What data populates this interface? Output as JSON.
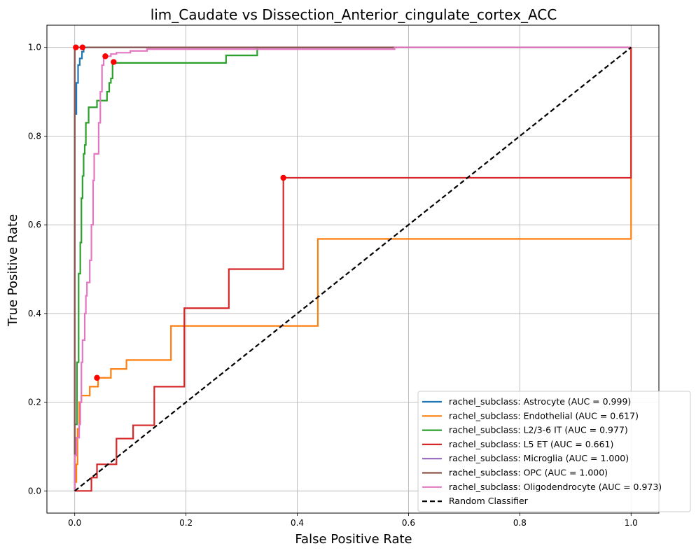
{
  "chart_data": {
    "type": "line",
    "title": "lim_Caudate vs Dissection_Anterior_cingulate_cortex_ACC",
    "xlabel": "False Positive Rate",
    "ylabel": "True Positive Rate",
    "xlim": [
      -0.05,
      1.05
    ],
    "ylim": [
      -0.05,
      1.05
    ],
    "xticks": [
      0.0,
      0.2,
      0.4,
      0.6,
      0.8,
      1.0
    ],
    "yticks": [
      0.0,
      0.2,
      0.4,
      0.6,
      0.8,
      1.0
    ],
    "xtick_labels": [
      "0.0",
      "0.2",
      "0.4",
      "0.6",
      "0.8",
      "1.0"
    ],
    "ytick_labels": [
      "0.0",
      "0.2",
      "0.4",
      "0.6",
      "0.8",
      "1.0"
    ],
    "grid": true,
    "legend_position": "lower-right",
    "series": [
      {
        "name": "rachel_subclass: Astrocyte (AUC = 0.999)",
        "color": "#1f77b4",
        "points": [
          [
            0,
            0
          ],
          [
            0,
            0.85
          ],
          [
            0.003,
            0.85
          ],
          [
            0.003,
            0.92
          ],
          [
            0.006,
            0.92
          ],
          [
            0.006,
            0.96
          ],
          [
            0.009,
            0.96
          ],
          [
            0.009,
            0.975
          ],
          [
            0.013,
            0.975
          ],
          [
            0.013,
            0.99
          ],
          [
            0.016,
            0.99
          ],
          [
            0.016,
            1.0
          ],
          [
            1.0,
            1.0
          ]
        ],
        "marker": [
          0.014,
          1.0
        ]
      },
      {
        "name": "rachel_subclass: Endothelial (AUC = 0.617)",
        "color": "#ff7f0e",
        "points": [
          [
            0,
            0
          ],
          [
            0,
            0.02
          ],
          [
            0.003,
            0.02
          ],
          [
            0.003,
            0.06
          ],
          [
            0.005,
            0.06
          ],
          [
            0.005,
            0.14
          ],
          [
            0.008,
            0.14
          ],
          [
            0.008,
            0.2
          ],
          [
            0.012,
            0.2
          ],
          [
            0.012,
            0.215
          ],
          [
            0.027,
            0.215
          ],
          [
            0.027,
            0.235
          ],
          [
            0.042,
            0.235
          ],
          [
            0.042,
            0.255
          ],
          [
            0.065,
            0.255
          ],
          [
            0.065,
            0.275
          ],
          [
            0.093,
            0.275
          ],
          [
            0.093,
            0.295
          ],
          [
            0.173,
            0.295
          ],
          [
            0.173,
            0.372
          ],
          [
            0.437,
            0.372
          ],
          [
            0.437,
            0.568
          ],
          [
            1.0,
            0.568
          ],
          [
            1.0,
            1.0
          ]
        ],
        "marker": [
          0.04,
          0.255
        ]
      },
      {
        "name": "rachel_subclass: L2/3-6 IT (AUC = 0.977)",
        "color": "#2ca02c",
        "points": [
          [
            0,
            0
          ],
          [
            0,
            0.15
          ],
          [
            0.004,
            0.15
          ],
          [
            0.004,
            0.29
          ],
          [
            0.007,
            0.29
          ],
          [
            0.007,
            0.49
          ],
          [
            0.01,
            0.49
          ],
          [
            0.01,
            0.56
          ],
          [
            0.012,
            0.56
          ],
          [
            0.012,
            0.66
          ],
          [
            0.014,
            0.66
          ],
          [
            0.014,
            0.71
          ],
          [
            0.016,
            0.71
          ],
          [
            0.016,
            0.76
          ],
          [
            0.018,
            0.76
          ],
          [
            0.018,
            0.78
          ],
          [
            0.02,
            0.78
          ],
          [
            0.02,
            0.83
          ],
          [
            0.025,
            0.83
          ],
          [
            0.025,
            0.865
          ],
          [
            0.04,
            0.865
          ],
          [
            0.04,
            0.88
          ],
          [
            0.058,
            0.88
          ],
          [
            0.058,
            0.9
          ],
          [
            0.062,
            0.9
          ],
          [
            0.062,
            0.92
          ],
          [
            0.065,
            0.92
          ],
          [
            0.065,
            0.93
          ],
          [
            0.068,
            0.93
          ],
          [
            0.068,
            0.965
          ],
          [
            0.272,
            0.965
          ],
          [
            0.272,
            0.982
          ],
          [
            0.328,
            0.982
          ],
          [
            0.328,
            1.0
          ],
          [
            1.0,
            1.0
          ]
        ],
        "marker": [
          0.07,
          0.967
        ]
      },
      {
        "name": "rachel_subclass: L5 ET (AUC = 0.661)",
        "color": "#d62728",
        "points": [
          [
            0,
            0
          ],
          [
            0.03,
            0
          ],
          [
            0.03,
            0.03
          ],
          [
            0.04,
            0.03
          ],
          [
            0.04,
            0.06
          ],
          [
            0.075,
            0.06
          ],
          [
            0.075,
            0.118
          ],
          [
            0.105,
            0.118
          ],
          [
            0.105,
            0.148
          ],
          [
            0.143,
            0.148
          ],
          [
            0.143,
            0.235
          ],
          [
            0.197,
            0.235
          ],
          [
            0.197,
            0.412
          ],
          [
            0.277,
            0.412
          ],
          [
            0.277,
            0.5
          ],
          [
            0.375,
            0.5
          ],
          [
            0.375,
            0.706
          ],
          [
            1.0,
            0.706
          ],
          [
            1.0,
            1.0
          ]
        ],
        "marker": [
          0.375,
          0.706
        ]
      },
      {
        "name": "rachel_subclass: Microglia (AUC = 1.000)",
        "color": "#9467bd",
        "points": [
          [
            0,
            0
          ],
          [
            0,
            1.0
          ],
          [
            1.0,
            1.0
          ]
        ],
        "marker": null
      },
      {
        "name": "rachel_subclass: OPC (AUC = 1.000)",
        "color": "#8c564b",
        "points": [
          [
            0,
            0
          ],
          [
            0,
            1.0
          ],
          [
            1.0,
            1.0
          ]
        ],
        "marker": [
          0.002,
          1.0
        ]
      },
      {
        "name": "rachel_subclass: Oligodendrocyte (AUC = 0.973)",
        "color": "#e377c2",
        "points": [
          [
            0,
            0
          ],
          [
            0,
            0.08
          ],
          [
            0.003,
            0.08
          ],
          [
            0.003,
            0.12
          ],
          [
            0.008,
            0.12
          ],
          [
            0.008,
            0.15
          ],
          [
            0.01,
            0.15
          ],
          [
            0.01,
            0.2
          ],
          [
            0.012,
            0.2
          ],
          [
            0.012,
            0.29
          ],
          [
            0.014,
            0.29
          ],
          [
            0.014,
            0.34
          ],
          [
            0.018,
            0.34
          ],
          [
            0.018,
            0.4
          ],
          [
            0.02,
            0.4
          ],
          [
            0.02,
            0.44
          ],
          [
            0.022,
            0.44
          ],
          [
            0.022,
            0.47
          ],
          [
            0.027,
            0.47
          ],
          [
            0.027,
            0.52
          ],
          [
            0.03,
            0.52
          ],
          [
            0.03,
            0.6
          ],
          [
            0.033,
            0.6
          ],
          [
            0.033,
            0.7
          ],
          [
            0.035,
            0.7
          ],
          [
            0.035,
            0.76
          ],
          [
            0.043,
            0.76
          ],
          [
            0.043,
            0.83
          ],
          [
            0.046,
            0.83
          ],
          [
            0.046,
            0.9
          ],
          [
            0.049,
            0.9
          ],
          [
            0.049,
            0.96
          ],
          [
            0.052,
            0.96
          ],
          [
            0.052,
            0.98
          ],
          [
            0.065,
            0.98
          ],
          [
            0.065,
            0.985
          ],
          [
            0.075,
            0.985
          ],
          [
            0.075,
            0.988
          ],
          [
            0.1,
            0.988
          ],
          [
            0.1,
            0.992
          ],
          [
            0.13,
            0.992
          ],
          [
            0.13,
            0.996
          ],
          [
            0.575,
            0.996
          ],
          [
            0.575,
            1.0
          ],
          [
            1.0,
            1.0
          ]
        ],
        "marker": [
          0.055,
          0.98
        ]
      },
      {
        "name": "Random Classifier",
        "color": "#000000",
        "dashed": true,
        "points": [
          [
            0,
            0
          ],
          [
            1.0,
            1.0
          ]
        ],
        "marker": null
      }
    ]
  }
}
